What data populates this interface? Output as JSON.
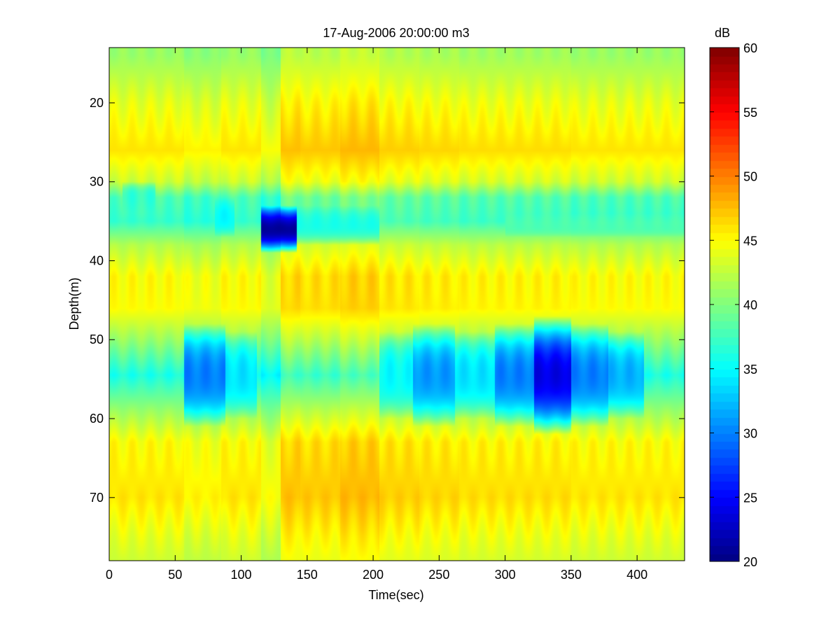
{
  "chart_data": {
    "type": "heatmap",
    "title": "17-Aug-2006 20:00:00 m3",
    "xlabel": "Time(sec)",
    "ylabel": "Depth(m)",
    "xlim": [
      0,
      436
    ],
    "ylim": [
      13,
      78
    ],
    "y_reversed": true,
    "xticks": [
      0,
      50,
      100,
      150,
      200,
      250,
      300,
      350,
      400
    ],
    "yticks": [
      20,
      30,
      40,
      50,
      60,
      70
    ],
    "colormap": "jet",
    "colorbar": {
      "label": "dB",
      "range": [
        20,
        60
      ],
      "ticks": [
        20,
        25,
        30,
        35,
        40,
        45,
        50,
        55,
        60
      ]
    },
    "background_level_db": 43,
    "time_segments": [
      {
        "t0": 0,
        "t1": 57,
        "offset": 0
      },
      {
        "t0": 57,
        "t1": 85,
        "offset": -1
      },
      {
        "t0": 85,
        "t1": 115,
        "offset": 0
      },
      {
        "t0": 115,
        "t1": 130,
        "offset": -2
      },
      {
        "t0": 130,
        "t1": 145,
        "offset": 2.5
      },
      {
        "t0": 145,
        "t1": 175,
        "offset": 2
      },
      {
        "t0": 175,
        "t1": 205,
        "offset": 3
      },
      {
        "t0": 205,
        "t1": 235,
        "offset": 1.5
      },
      {
        "t0": 235,
        "t1": 265,
        "offset": 1
      },
      {
        "t0": 265,
        "t1": 300,
        "offset": 0.5
      },
      {
        "t0": 300,
        "t1": 350,
        "offset": 0.5
      },
      {
        "t0": 350,
        "t1": 410,
        "offset": 0
      },
      {
        "t0": 410,
        "t1": 436,
        "offset": 0
      }
    ],
    "depth_layers": [
      {
        "depth": 14,
        "db": 41
      },
      {
        "depth": 20,
        "db": 44
      },
      {
        "depth": 26,
        "db": 46
      },
      {
        "depth": 30,
        "db": 43
      },
      {
        "depth": 32,
        "db": 38
      },
      {
        "depth": 35,
        "db": 37
      },
      {
        "depth": 38,
        "db": 42
      },
      {
        "depth": 42,
        "db": 45
      },
      {
        "depth": 46,
        "db": 45
      },
      {
        "depth": 50,
        "db": 41
      },
      {
        "depth": 54.5,
        "db": 36
      },
      {
        "depth": 59,
        "db": 41
      },
      {
        "depth": 63,
        "db": 45
      },
      {
        "depth": 70,
        "db": 46
      },
      {
        "depth": 75,
        "db": 44
      },
      {
        "depth": 78,
        "db": 43
      }
    ],
    "anomalies": [
      {
        "t0": 115,
        "t1": 142,
        "d0": 33,
        "d1": 39,
        "db": 21
      },
      {
        "t0": 142,
        "t1": 205,
        "d0": 33,
        "d1": 38,
        "db": 36
      },
      {
        "t0": 57,
        "t1": 88,
        "d0": 48,
        "d1": 61,
        "db": 30
      },
      {
        "t0": 88,
        "t1": 112,
        "d0": 49,
        "d1": 60,
        "db": 34
      },
      {
        "t0": 205,
        "t1": 230,
        "d0": 49,
        "d1": 60,
        "db": 35
      },
      {
        "t0": 230,
        "t1": 262,
        "d0": 48,
        "d1": 61,
        "db": 31
      },
      {
        "t0": 262,
        "t1": 292,
        "d0": 49,
        "d1": 60,
        "db": 34
      },
      {
        "t0": 292,
        "t1": 322,
        "d0": 48,
        "d1": 61,
        "db": 30
      },
      {
        "t0": 322,
        "t1": 350,
        "d0": 47,
        "d1": 62,
        "db": 24
      },
      {
        "t0": 350,
        "t1": 378,
        "d0": 48,
        "d1": 61,
        "db": 30
      },
      {
        "t0": 378,
        "t1": 405,
        "d0": 49,
        "d1": 60,
        "db": 32
      },
      {
        "t0": 10,
        "t1": 35,
        "d0": 30,
        "d1": 34,
        "db": 37
      },
      {
        "t0": 80,
        "t1": 95,
        "d0": 32,
        "d1": 37,
        "db": 35
      },
      {
        "t0": 300,
        "t1": 436,
        "d0": 34,
        "d1": 37,
        "db": 38
      }
    ]
  }
}
